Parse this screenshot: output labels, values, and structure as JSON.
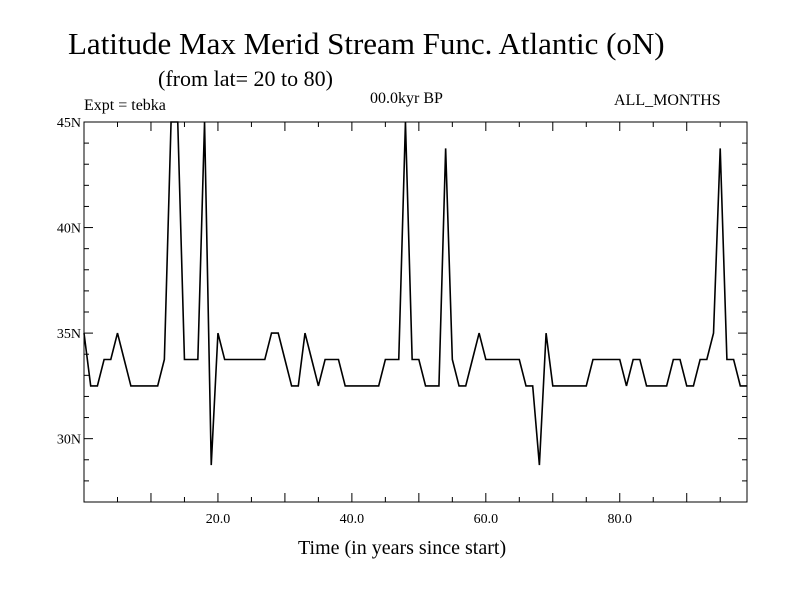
{
  "chart_data": {
    "type": "line",
    "title": "Latitude Max Merid Stream Func. Atlantic (oN)",
    "subtitle": "(from lat= 20 to 80)",
    "annotations": {
      "experiment": "Expt = tebka",
      "period": "00.0kyr BP",
      "months": "ALL_MONTHS"
    },
    "xlabel": "Time (in years since start)",
    "ylabel": "",
    "xlim": [
      0,
      99
    ],
    "ylim": [
      27,
      45
    ],
    "x_ticks": [
      20,
      40,
      60,
      80
    ],
    "x_tick_labels": [
      "20.0",
      "40.0",
      "60.0",
      "80.0"
    ],
    "y_ticks": [
      30,
      35,
      40,
      45
    ],
    "y_tick_labels": [
      "30N",
      "35N",
      "40N",
      "45N"
    ],
    "grid": false,
    "line_color": "#000000",
    "x": [
      0,
      1,
      2,
      3,
      4,
      5,
      6,
      7,
      8,
      9,
      10,
      11,
      12,
      13,
      14,
      15,
      16,
      17,
      18,
      19,
      20,
      21,
      22,
      23,
      24,
      25,
      26,
      27,
      28,
      29,
      30,
      31,
      32,
      33,
      34,
      35,
      36,
      37,
      38,
      39,
      40,
      41,
      42,
      43,
      44,
      45,
      46,
      47,
      48,
      49,
      50,
      51,
      52,
      53,
      54,
      55,
      56,
      57,
      58,
      59,
      60,
      61,
      62,
      63,
      64,
      65,
      66,
      67,
      68,
      69,
      70,
      71,
      72,
      73,
      74,
      75,
      76,
      77,
      78,
      79,
      80,
      81,
      82,
      83,
      84,
      85,
      86,
      87,
      88,
      89,
      90,
      91,
      92,
      93,
      94,
      95,
      96,
      97,
      98,
      99
    ],
    "y": [
      35,
      32.5,
      32.5,
      33.75,
      33.75,
      35,
      33.75,
      32.5,
      32.5,
      32.5,
      32.5,
      32.5,
      33.75,
      45,
      45,
      33.75,
      33.75,
      33.75,
      45,
      28.75,
      35,
      33.75,
      33.75,
      33.75,
      33.75,
      33.75,
      33.75,
      33.75,
      35,
      35,
      33.75,
      32.5,
      32.5,
      35,
      33.75,
      32.5,
      33.75,
      33.75,
      33.75,
      32.5,
      32.5,
      32.5,
      32.5,
      32.5,
      32.5,
      33.75,
      33.75,
      33.75,
      45,
      33.75,
      33.75,
      32.5,
      32.5,
      32.5,
      43.75,
      33.75,
      32.5,
      32.5,
      33.75,
      35,
      33.75,
      33.75,
      33.75,
      33.75,
      33.75,
      33.75,
      32.5,
      32.5,
      28.75,
      35,
      32.5,
      32.5,
      32.5,
      32.5,
      32.5,
      32.5,
      33.75,
      33.75,
      33.75,
      33.75,
      33.75,
      32.5,
      33.75,
      33.75,
      32.5,
      32.5,
      32.5,
      32.5,
      33.75,
      33.75,
      32.5,
      32.5,
      33.75,
      33.75,
      35,
      43.75,
      33.75,
      33.75,
      32.5,
      32.5
    ]
  }
}
